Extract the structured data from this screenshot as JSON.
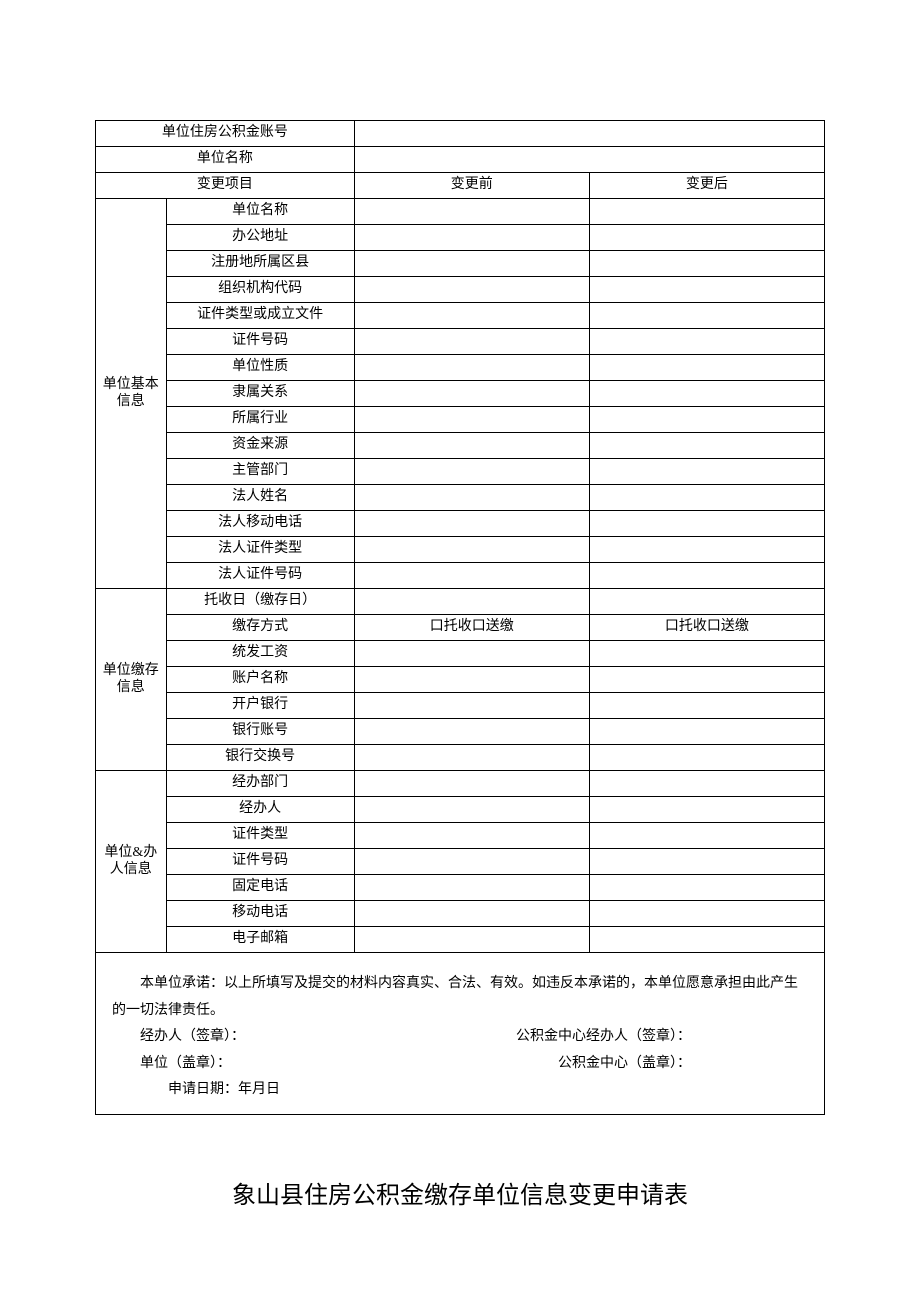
{
  "header": {
    "row1_label": "单位住房公积金账号",
    "row2_label": "单位名称",
    "col_item": "变更项目",
    "col_before": "变更前",
    "col_after": "变更后"
  },
  "section1": {
    "group_label": "单位基本信息",
    "rows": [
      "单位名称",
      "办公地址",
      "注册地所属区县",
      "组织机构代码",
      "证件类型或成立文件",
      "证件号码",
      "单位性质",
      "隶属关系",
      "所属行业",
      "资金来源",
      "主管部门",
      "法人姓名",
      "法人移动电话",
      "法人证件类型",
      "法人证件号码"
    ]
  },
  "section2": {
    "group_label": "单位缴存信息",
    "rows": [
      "托收日（缴存日）",
      "缴存方式",
      "统发工资",
      "账户名称",
      "开户银行",
      "银行账号",
      "银行交换号"
    ],
    "deposit_before": "口托收口送缴",
    "deposit_after": "口托收口送缴"
  },
  "section3": {
    "group_label": "单位&办人信息",
    "rows": [
      "经办部门",
      "经办人",
      "证件类型",
      "证件号码",
      "固定电话",
      "移动电话",
      "电子邮箱"
    ]
  },
  "declare": {
    "text": "本单位承诺：以上所填写及提交的材料内容真实、合法、有效。如违反本承诺的，本单位愿意承担由此产生的一切法律责任。",
    "agent_sign": "经办人（签章）：",
    "center_agent_sign": "公积金中心经办人（签章）：",
    "unit_seal": "单位（盖章）：",
    "center_seal": "公积金中心（盖章）：",
    "apply_date": "申请日期：年月日"
  },
  "title": "象山县住房公积金缴存单位信息变更申请表"
}
